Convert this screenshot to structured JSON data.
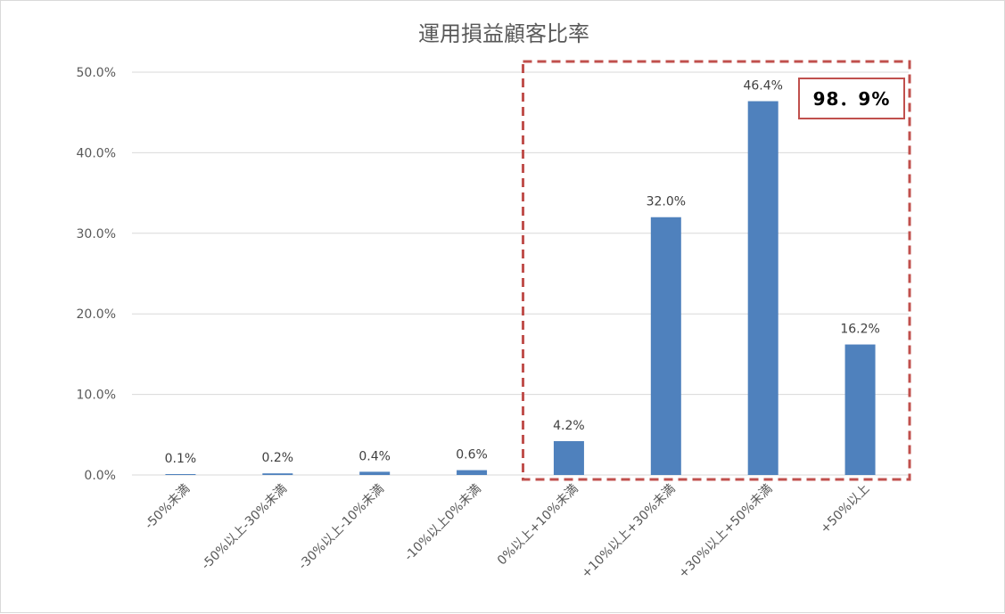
{
  "chart_data": {
    "type": "bar",
    "title": "運用損益顧客比率",
    "categories": [
      "-50%未満",
      "-50%以上-30%未満",
      "-30%以上-10%未満",
      "-10%以上0%未満",
      "0%以上+10%未満",
      "+10%以上+30%未満",
      "+30%以上+50%未満",
      "+50%以上"
    ],
    "values": [
      0.1,
      0.2,
      0.4,
      0.6,
      4.2,
      32.0,
      46.4,
      16.2
    ],
    "data_labels": [
      "0.1%",
      "0.2%",
      "0.4%",
      "0.6%",
      "4.2%",
      "32.0%",
      "46.4%",
      "16.2%"
    ],
    "ylim": [
      0,
      50
    ],
    "yticks": [
      0,
      10,
      20,
      30,
      40,
      50
    ],
    "ytick_labels": [
      "0.0%",
      "10.0%",
      "20.0%",
      "30.0%",
      "40.0%",
      "50.0%"
    ],
    "xlabel": "",
    "ylabel": "",
    "grid": true,
    "legend": "none",
    "bar_color": "#4f81bd",
    "highlight": {
      "label": "98．9%",
      "range": [
        "0%以上+10%未満",
        "+50%以上"
      ],
      "border_color": "#c0504d",
      "style": "dashed"
    }
  }
}
